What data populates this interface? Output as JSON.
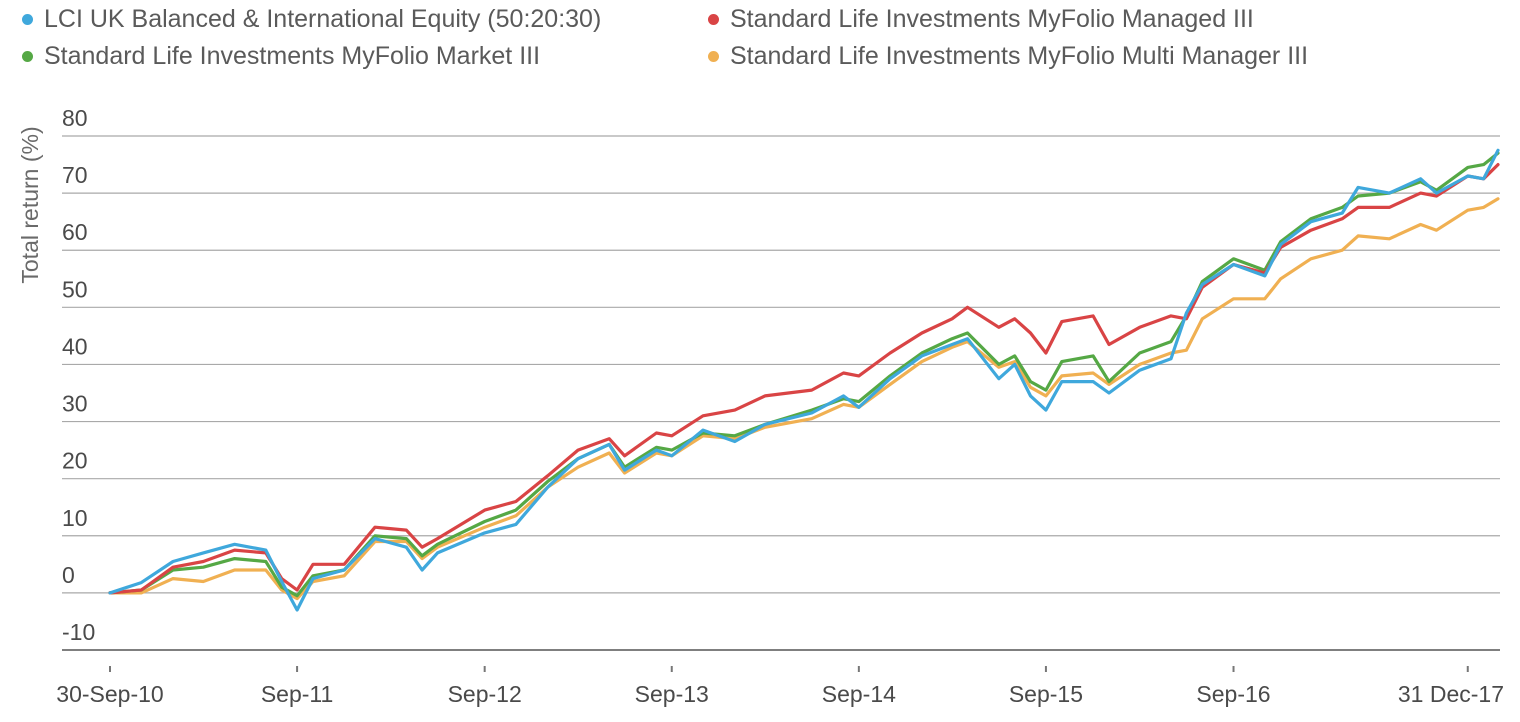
{
  "chart_data": {
    "type": "line",
    "title": "",
    "xlabel": "",
    "ylabel": "Total return (%)",
    "ylim": [
      -10,
      80
    ],
    "y_ticks": [
      "80",
      "70",
      "60",
      "50",
      "40",
      "30",
      "20",
      "10",
      "0",
      "-10"
    ],
    "y_tick_values": [
      80,
      70,
      60,
      50,
      40,
      30,
      20,
      10,
      0,
      -10
    ],
    "x_tick_labels": [
      "30-Sep-10",
      "Sep-11",
      "Sep-12",
      "Sep-13",
      "Sep-14",
      "Sep-15",
      "Sep-16",
      "31 Dec-17"
    ],
    "x_tick_dates": [
      "2010-09-30",
      "2011-09-30",
      "2012-09-30",
      "2013-09-30",
      "2014-09-30",
      "2015-09-30",
      "2016-09-30",
      "2017-12-31"
    ],
    "x_range": [
      "2010-09-30",
      "2018-02-28"
    ],
    "grid": true,
    "legend_position": "top",
    "series": [
      {
        "name": "LCI UK Balanced & International Equity (50:20:30)",
        "color": "#3fa8dc",
        "points": [
          [
            "2010-09-30",
            0.0
          ],
          [
            "2010-11-30",
            1.8
          ],
          [
            "2011-01-31",
            5.5
          ],
          [
            "2011-03-31",
            7.0
          ],
          [
            "2011-05-31",
            8.5
          ],
          [
            "2011-07-31",
            7.5
          ],
          [
            "2011-08-31",
            2.0
          ],
          [
            "2011-09-30",
            -3.0
          ],
          [
            "2011-10-31",
            2.5
          ],
          [
            "2011-12-31",
            4.0
          ],
          [
            "2012-02-29",
            9.5
          ],
          [
            "2012-04-30",
            8.0
          ],
          [
            "2012-05-31",
            4.0
          ],
          [
            "2012-06-30",
            7.0
          ],
          [
            "2012-09-30",
            10.5
          ],
          [
            "2012-11-30",
            12.0
          ],
          [
            "2013-01-31",
            18.5
          ],
          [
            "2013-03-31",
            23.5
          ],
          [
            "2013-05-31",
            26.0
          ],
          [
            "2013-06-30",
            21.5
          ],
          [
            "2013-08-31",
            25.0
          ],
          [
            "2013-09-30",
            24.0
          ],
          [
            "2013-11-30",
            28.5
          ],
          [
            "2014-01-31",
            26.5
          ],
          [
            "2014-03-31",
            29.5
          ],
          [
            "2014-06-30",
            31.5
          ],
          [
            "2014-08-31",
            34.5
          ],
          [
            "2014-09-30",
            32.5
          ],
          [
            "2014-11-30",
            37.5
          ],
          [
            "2015-01-31",
            41.5
          ],
          [
            "2015-03-31",
            43.5
          ],
          [
            "2015-04-30",
            44.5
          ],
          [
            "2015-06-30",
            37.5
          ],
          [
            "2015-07-31",
            40.0
          ],
          [
            "2015-08-31",
            34.5
          ],
          [
            "2015-09-30",
            32.0
          ],
          [
            "2015-10-31",
            37.0
          ],
          [
            "2015-12-31",
            37.0
          ],
          [
            "2016-01-31",
            35.0
          ],
          [
            "2016-03-31",
            39.0
          ],
          [
            "2016-05-31",
            41.0
          ],
          [
            "2016-06-30",
            49.0
          ],
          [
            "2016-07-31",
            54.0
          ],
          [
            "2016-09-30",
            57.5
          ],
          [
            "2016-11-30",
            55.5
          ],
          [
            "2016-12-31",
            61.0
          ],
          [
            "2017-02-28",
            65.0
          ],
          [
            "2017-04-30",
            66.5
          ],
          [
            "2017-05-31",
            71.0
          ],
          [
            "2017-07-31",
            70.0
          ],
          [
            "2017-09-30",
            72.5
          ],
          [
            "2017-10-31",
            70.0
          ],
          [
            "2017-12-31",
            73.0
          ],
          [
            "2018-01-31",
            72.5
          ],
          [
            "2018-02-28",
            77.5
          ]
        ]
      },
      {
        "name": "Standard Life Investments MyFolio Managed III",
        "color": "#d94445",
        "points": [
          [
            "2010-09-30",
            0.0
          ],
          [
            "2010-11-30",
            0.5
          ],
          [
            "2011-01-31",
            4.5
          ],
          [
            "2011-03-31",
            5.5
          ],
          [
            "2011-05-31",
            7.5
          ],
          [
            "2011-07-31",
            7.0
          ],
          [
            "2011-08-31",
            2.5
          ],
          [
            "2011-09-30",
            0.5
          ],
          [
            "2011-10-31",
            5.0
          ],
          [
            "2011-12-31",
            5.0
          ],
          [
            "2012-02-29",
            11.5
          ],
          [
            "2012-04-30",
            11.0
          ],
          [
            "2012-05-31",
            8.0
          ],
          [
            "2012-06-30",
            9.5
          ],
          [
            "2012-09-30",
            14.5
          ],
          [
            "2012-11-30",
            16.0
          ],
          [
            "2013-01-31",
            20.5
          ],
          [
            "2013-03-31",
            25.0
          ],
          [
            "2013-05-31",
            27.0
          ],
          [
            "2013-06-30",
            24.0
          ],
          [
            "2013-08-31",
            28.0
          ],
          [
            "2013-09-30",
            27.5
          ],
          [
            "2013-11-30",
            31.0
          ],
          [
            "2014-01-31",
            32.0
          ],
          [
            "2014-03-31",
            34.5
          ],
          [
            "2014-06-30",
            35.5
          ],
          [
            "2014-08-31",
            38.5
          ],
          [
            "2014-09-30",
            38.0
          ],
          [
            "2014-11-30",
            42.0
          ],
          [
            "2015-01-31",
            45.5
          ],
          [
            "2015-03-31",
            48.0
          ],
          [
            "2015-04-30",
            50.0
          ],
          [
            "2015-06-30",
            46.5
          ],
          [
            "2015-07-31",
            48.0
          ],
          [
            "2015-08-31",
            45.5
          ],
          [
            "2015-09-30",
            42.0
          ],
          [
            "2015-10-31",
            47.5
          ],
          [
            "2015-12-31",
            48.5
          ],
          [
            "2016-01-31",
            43.5
          ],
          [
            "2016-03-31",
            46.5
          ],
          [
            "2016-05-31",
            48.5
          ],
          [
            "2016-06-30",
            48.0
          ],
          [
            "2016-07-31",
            53.5
          ],
          [
            "2016-09-30",
            57.5
          ],
          [
            "2016-11-30",
            56.0
          ],
          [
            "2016-12-31",
            60.5
          ],
          [
            "2017-02-28",
            63.5
          ],
          [
            "2017-04-30",
            65.5
          ],
          [
            "2017-05-31",
            67.5
          ],
          [
            "2017-07-31",
            67.5
          ],
          [
            "2017-09-30",
            70.0
          ],
          [
            "2017-10-31",
            69.5
          ],
          [
            "2017-12-31",
            73.0
          ],
          [
            "2018-01-31",
            72.5
          ],
          [
            "2018-02-28",
            75.0
          ]
        ]
      },
      {
        "name": "Standard Life Investments MyFolio Market III",
        "color": "#55a845",
        "points": [
          [
            "2010-09-30",
            0.0
          ],
          [
            "2010-11-30",
            0.5
          ],
          [
            "2011-01-31",
            4.0
          ],
          [
            "2011-03-31",
            4.5
          ],
          [
            "2011-05-31",
            6.0
          ],
          [
            "2011-07-31",
            5.5
          ],
          [
            "2011-08-31",
            1.0
          ],
          [
            "2011-09-30",
            -0.5
          ],
          [
            "2011-10-31",
            3.0
          ],
          [
            "2011-12-31",
            4.0
          ],
          [
            "2012-02-29",
            10.0
          ],
          [
            "2012-04-30",
            9.5
          ],
          [
            "2012-05-31",
            6.5
          ],
          [
            "2012-06-30",
            8.5
          ],
          [
            "2012-09-30",
            12.5
          ],
          [
            "2012-11-30",
            14.5
          ],
          [
            "2013-01-31",
            19.5
          ],
          [
            "2013-03-31",
            23.5
          ],
          [
            "2013-05-31",
            26.0
          ],
          [
            "2013-06-30",
            22.0
          ],
          [
            "2013-08-31",
            25.5
          ],
          [
            "2013-09-30",
            25.0
          ],
          [
            "2013-11-30",
            28.0
          ],
          [
            "2014-01-31",
            27.5
          ],
          [
            "2014-03-31",
            29.5
          ],
          [
            "2014-06-30",
            32.0
          ],
          [
            "2014-08-31",
            34.0
          ],
          [
            "2014-09-30",
            33.5
          ],
          [
            "2014-11-30",
            38.0
          ],
          [
            "2015-01-31",
            42.0
          ],
          [
            "2015-03-31",
            44.5
          ],
          [
            "2015-04-30",
            45.5
          ],
          [
            "2015-06-30",
            40.0
          ],
          [
            "2015-07-31",
            41.5
          ],
          [
            "2015-08-31",
            37.0
          ],
          [
            "2015-09-30",
            35.5
          ],
          [
            "2015-10-31",
            40.5
          ],
          [
            "2015-12-31",
            41.5
          ],
          [
            "2016-01-31",
            37.0
          ],
          [
            "2016-03-31",
            42.0
          ],
          [
            "2016-05-31",
            44.0
          ],
          [
            "2016-06-30",
            48.5
          ],
          [
            "2016-07-31",
            54.5
          ],
          [
            "2016-09-30",
            58.5
          ],
          [
            "2016-11-30",
            56.5
          ],
          [
            "2016-12-31",
            61.5
          ],
          [
            "2017-02-28",
            65.5
          ],
          [
            "2017-04-30",
            67.5
          ],
          [
            "2017-05-31",
            69.5
          ],
          [
            "2017-07-31",
            70.0
          ],
          [
            "2017-09-30",
            72.0
          ],
          [
            "2017-10-31",
            70.5
          ],
          [
            "2017-12-31",
            74.5
          ],
          [
            "2018-01-31",
            75.0
          ],
          [
            "2018-02-28",
            77.0
          ]
        ]
      },
      {
        "name": "Standard Life Investments MyFolio Multi Manager III",
        "color": "#f0b052",
        "points": [
          [
            "2010-09-30",
            0.0
          ],
          [
            "2010-11-30",
            0.0
          ],
          [
            "2011-01-31",
            2.5
          ],
          [
            "2011-03-31",
            2.0
          ],
          [
            "2011-05-31",
            4.0
          ],
          [
            "2011-07-31",
            4.0
          ],
          [
            "2011-08-31",
            0.5
          ],
          [
            "2011-09-30",
            -1.0
          ],
          [
            "2011-10-31",
            2.0
          ],
          [
            "2011-12-31",
            3.0
          ],
          [
            "2012-02-29",
            9.0
          ],
          [
            "2012-04-30",
            9.0
          ],
          [
            "2012-05-31",
            6.0
          ],
          [
            "2012-06-30",
            8.0
          ],
          [
            "2012-09-30",
            11.5
          ],
          [
            "2012-11-30",
            13.5
          ],
          [
            "2013-01-31",
            18.5
          ],
          [
            "2013-03-31",
            22.0
          ],
          [
            "2013-05-31",
            24.5
          ],
          [
            "2013-06-30",
            21.0
          ],
          [
            "2013-08-31",
            24.5
          ],
          [
            "2013-09-30",
            24.0
          ],
          [
            "2013-11-30",
            27.5
          ],
          [
            "2014-01-31",
            27.0
          ],
          [
            "2014-03-31",
            29.0
          ],
          [
            "2014-06-30",
            30.5
          ],
          [
            "2014-08-31",
            33.0
          ],
          [
            "2014-09-30",
            32.5
          ],
          [
            "2014-11-30",
            36.5
          ],
          [
            "2015-01-31",
            40.5
          ],
          [
            "2015-03-31",
            43.0
          ],
          [
            "2015-04-30",
            44.0
          ],
          [
            "2015-06-30",
            39.5
          ],
          [
            "2015-07-31",
            40.5
          ],
          [
            "2015-08-31",
            36.0
          ],
          [
            "2015-09-30",
            34.5
          ],
          [
            "2015-10-31",
            38.0
          ],
          [
            "2015-12-31",
            38.5
          ],
          [
            "2016-01-31",
            36.5
          ],
          [
            "2016-03-31",
            40.0
          ],
          [
            "2016-05-31",
            42.0
          ],
          [
            "2016-06-30",
            42.5
          ],
          [
            "2016-07-31",
            48.0
          ],
          [
            "2016-09-30",
            51.5
          ],
          [
            "2016-11-30",
            51.5
          ],
          [
            "2016-12-31",
            55.0
          ],
          [
            "2017-02-28",
            58.5
          ],
          [
            "2017-04-30",
            60.0
          ],
          [
            "2017-05-31",
            62.5
          ],
          [
            "2017-07-31",
            62.0
          ],
          [
            "2017-09-30",
            64.5
          ],
          [
            "2017-10-31",
            63.5
          ],
          [
            "2017-12-31",
            67.0
          ],
          [
            "2018-01-31",
            67.5
          ],
          [
            "2018-02-28",
            69.0
          ]
        ]
      }
    ]
  }
}
